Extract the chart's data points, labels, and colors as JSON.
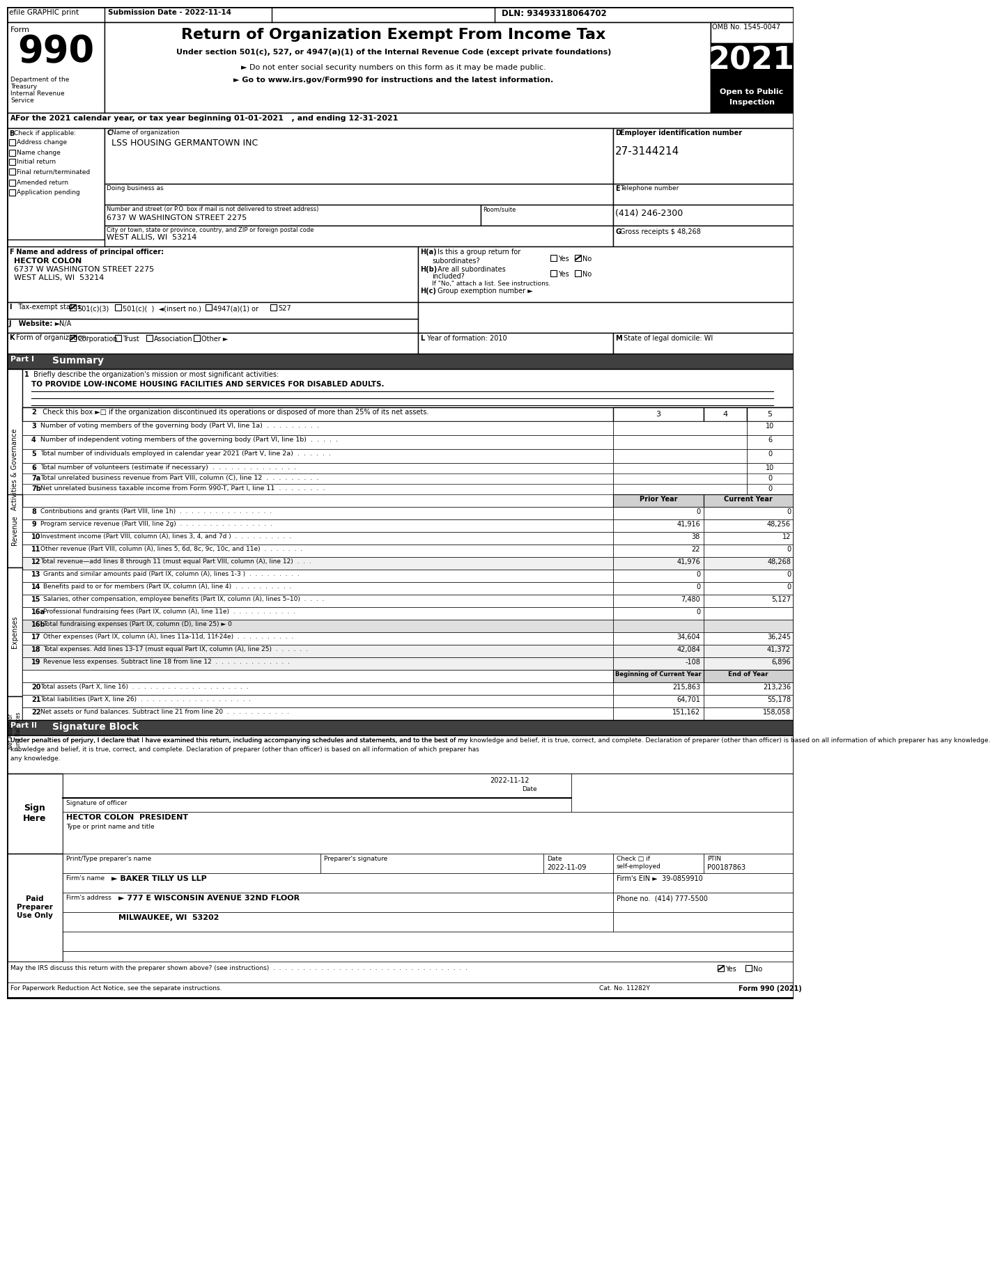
{
  "title_bar": {
    "efile_text": "efile GRAPHIC print",
    "submission_text": "Submission Date - 2022-11-14",
    "dln_text": "DLN: 93493318064702"
  },
  "form_header": {
    "form_label": "Form",
    "form_number": "990",
    "title": "Return of Organization Exempt From Income Tax",
    "subtitle1": "Under section 501(c), 527, or 4947(a)(1) of the Internal Revenue Code (except private foundations)",
    "subtitle2": "► Do not enter social security numbers on this form as it may be made public.",
    "subtitle3": "► Go to www.irs.gov/Form990 for instructions and the latest information.",
    "omb": "OMB No. 1545-0047",
    "year": "2021",
    "open_public": "Open to Public",
    "inspection": "Inspection",
    "dept1": "Department of the",
    "dept2": "Treasury",
    "dept3": "Internal Revenue",
    "dept4": "Service"
  },
  "section_a": {
    "label": "A For the 2021 calendar year, or tax year beginning 01-01-2021   , and ending 12-31-2021"
  },
  "section_b": {
    "label": "B Check if applicable:",
    "items": [
      "Address change",
      "Name change",
      "Initial return",
      "Final return/terminated",
      "Amended return",
      "Application pending"
    ]
  },
  "section_c": {
    "label": "C Name of organization",
    "org_name": "LSS HOUSING GERMANTOWN INC",
    "dba_label": "Doing business as",
    "street_label": "Number and street (or P.O. box if mail is not delivered to street address)",
    "room_label": "Room/suite",
    "street": "6737 W WASHINGTON STREET 2275",
    "city_label": "City or town, state or province, country, and ZIP or foreign postal code",
    "city": "WEST ALLIS, WI  53214"
  },
  "section_d": {
    "label": "D Employer identification number",
    "ein": "27-3144214"
  },
  "section_e": {
    "label": "E Telephone number",
    "phone": "(414) 246-2300"
  },
  "section_g": {
    "label": "G Gross receipts $",
    "amount": "48,268"
  },
  "section_f": {
    "label": "F  Name and address of principal officer:",
    "name": "HECTOR COLON",
    "street": "6737 W WASHINGTON STREET 2275",
    "city": "WEST ALLIS, WI  53214"
  },
  "section_h": {
    "ha_label": "H(a)  Is this a group return for",
    "ha_sub": "subordinates?",
    "ha_answer": "No",
    "hb_label": "H(b)  Are all subordinates",
    "hb_sub": "included?",
    "hb_answer": "No",
    "hb_note": "If \"No,\" attach a list. See instructions.",
    "hc_label": "H(c)  Group exemption number ►"
  },
  "section_i": {
    "label": "I   Tax-exempt status:",
    "checked": "501(c)(3)",
    "options": [
      "501(c)(3)",
      "501(c)(  )  ◄(insert no.)",
      "4947(a)(1) or",
      "527"
    ]
  },
  "section_j": {
    "label": "J  Website: ►",
    "value": "N/A"
  },
  "section_k": {
    "label": "K Form of organization:",
    "checked": "Corporation",
    "options": [
      "Corporation",
      "Trust",
      "Association",
      "Other ►"
    ]
  },
  "section_l": {
    "label": "L Year of formation: 2010"
  },
  "section_m": {
    "label": "M State of legal domicile: WI"
  },
  "part1": {
    "title": "Part I",
    "title_text": "Summary",
    "line1_label": "1  Briefly describe the organization's mission or most significant activities:",
    "line1_value": "TO PROVIDE LOW-INCOME HOUSING FACILITIES AND SERVICES FOR DISABLED ADULTS.",
    "line2": "2  Check this box ►□ if the organization discontinued its operations or disposed of more than 25% of its net assets.",
    "lines": [
      {
        "num": "3",
        "text": "Number of voting members of the governing body (Part VI, line 1a)  .  .  .  .  .  .  .  .  .",
        "prior": "",
        "current": "10"
      },
      {
        "num": "4",
        "text": "Number of independent voting members of the governing body (Part VI, line 1b)  .  .  .  .  .",
        "prior": "",
        "current": "6"
      },
      {
        "num": "5",
        "text": "Total number of individuals employed in calendar year 2021 (Part V, line 2a)  .  .  .  .  .  .",
        "prior": "",
        "current": "0"
      },
      {
        "num": "6",
        "text": "Total number of volunteers (estimate if necessary)  .  .  .  .  .  .  .  .  .  .  .  .  .  .",
        "prior": "",
        "current": "10"
      },
      {
        "num": "7a",
        "text": "Total unrelated business revenue from Part VIII, column (C), line 12  .  .  .  .  .  .  .  .  .",
        "prior": "",
        "current": "0"
      },
      {
        "num": "7b",
        "text": "Net unrelated business taxable income from Form 990-T, Part I, line 11  .  .  .  .  .  .  .  .",
        "prior": "",
        "current": "0"
      }
    ],
    "col_headers": [
      "Prior Year",
      "Current Year"
    ],
    "revenue_lines": [
      {
        "num": "8",
        "text": "Contributions and grants (Part VIII, line 1h)  .  .  .  .  .  .  .  .  .  .  .  .  .  .  .  .",
        "prior": "0",
        "current": "0"
      },
      {
        "num": "9",
        "text": "Program service revenue (Part VIII, line 2g)  .  .  .  .  .  .  .  .  .  .  .  .  .  .  .  .",
        "prior": "41,916",
        "current": "48,256"
      },
      {
        "num": "10",
        "text": "Investment income (Part VIII, column (A), lines 3, 4, and 7d )  .  .  .  .  .  .  .  .  .  .",
        "prior": "38",
        "current": "12"
      },
      {
        "num": "11",
        "text": "Other revenue (Part VIII, column (A), lines 5, 6d, 8c, 9c, 10c, and 11e)  .  .  .  .  .  .  .",
        "prior": "22",
        "current": "0"
      },
      {
        "num": "12",
        "text": "Total revenue—add lines 8 through 11 (must equal Part VIII, column (A), line 12)  .  .  .",
        "prior": "41,976",
        "current": "48,268"
      }
    ],
    "expense_lines": [
      {
        "num": "13",
        "text": "Grants and similar amounts paid (Part IX, column (A), lines 1-3 )  .  .  .  .  .  .  .  .  .",
        "prior": "0",
        "current": "0"
      },
      {
        "num": "14",
        "text": "Benefits paid to or for members (Part IX, column (A), line 4)  .  .  .  .  .  .  .  .  .  .",
        "prior": "0",
        "current": "0"
      },
      {
        "num": "15",
        "text": "Salaries, other compensation, employee benefits (Part IX, column (A), lines 5–10)  .  .  .  .",
        "prior": "7,480",
        "current": "5,127"
      },
      {
        "num": "16a",
        "text": "Professional fundraising fees (Part IX, column (A), line 11e)  .  .  .  .  .  .  .  .  .  .  .",
        "prior": "0",
        "current": ""
      },
      {
        "num": "16b",
        "text": "Total fundraising expenses (Part IX, column (D), line 25) ► 0",
        "prior": "",
        "current": ""
      },
      {
        "num": "17",
        "text": "Other expenses (Part IX, column (A), lines 11a-11d, 11f-24e)  .  .  .  .  .  .  .  .  .  .",
        "prior": "34,604",
        "current": "36,245"
      },
      {
        "num": "18",
        "text": "Total expenses. Add lines 13-17 (must equal Part IX, column (A), line 25)  .  .  .  .  .  .",
        "prior": "42,084",
        "current": "41,372"
      },
      {
        "num": "19",
        "text": "Revenue less expenses. Subtract line 18 from line 12  .  .  .  .  .  .  .  .  .  .  .  .  .",
        "prior": "-108",
        "current": "6,896"
      }
    ],
    "asset_col_headers": [
      "Beginning of Current Year",
      "End of Year"
    ],
    "asset_lines": [
      {
        "num": "20",
        "text": "Total assets (Part X, line 16)  .  .  .  .  .  .  .  .  .  .  .  .  .  .  .  .  .  .  .  .",
        "prior": "215,863",
        "current": "213,236"
      },
      {
        "num": "21",
        "text": "Total liabilities (Part X, line 26)  .  .  .  .  .  .  .  .  .  .  .  .  .  .  .  .  .  .  .",
        "prior": "64,701",
        "current": "55,178"
      },
      {
        "num": "22",
        "text": "Net assets or fund balances. Subtract line 21 from line 20  .  .  .  .  .  .  .  .  .  .  .",
        "prior": "151,162",
        "current": "158,058"
      }
    ]
  },
  "part2": {
    "title": "Part II",
    "title_text": "Signature Block",
    "declaration": "Under penalties of perjury, I declare that I have examined this return, including accompanying schedules and statements, and to the best of my knowledge and belief, it is true, correct, and complete. Declaration of preparer (other than officer) is based on all information of which preparer has any knowledge.",
    "sign_date": "2022-11-12",
    "sign_label": "Signature of officer",
    "sign_name": "HECTOR COLON  PRESIDENT",
    "sign_title": "Type or print name and title",
    "preparer_name_label": "Print/Type preparer's name",
    "preparer_sig_label": "Preparer's signature",
    "date_label": "Date",
    "check_label": "Check □ if self-employed",
    "ptin_label": "PTIN",
    "ptin": "P00187863",
    "preparer_date": "2022-11-09",
    "firm_name_label": "Firm's name",
    "firm_name": "► BAKER TILLY US LLP",
    "firm_ein_label": "Firm's EIN ►",
    "firm_ein": "39-0859910",
    "firm_address_label": "Firm's address",
    "firm_address": "► 777 E WISCONSIN AVENUE 32ND FLOOR",
    "firm_city": "MILWAUKEE, WI  53202",
    "phone_label": "Phone no.",
    "phone": "(414) 777-5500",
    "discuss_label": "May the IRS discuss this return with the preparer shown above? (see instructions)  .  .  .  .  .  .  .  .  .  .  .  .  .  .  .  .  .  .  .  .  .  .  .  .  .  .  .  .  .  .  .  .  .",
    "discuss_answer": "Yes",
    "cat_no": "Cat. No. 11282Y",
    "form_bottom": "Form 990 (2021)"
  },
  "colors": {
    "black": "#000000",
    "white": "#ffffff",
    "light_gray": "#f2f2f2",
    "medium_gray": "#d0d0d0",
    "dark_header": "#1a1a1a",
    "section_header_bg": "#404040",
    "part_header_bg": "#808080",
    "revenue_section_bg": "#e8e8e8",
    "expense_section_bg": "#e8e8e8"
  }
}
